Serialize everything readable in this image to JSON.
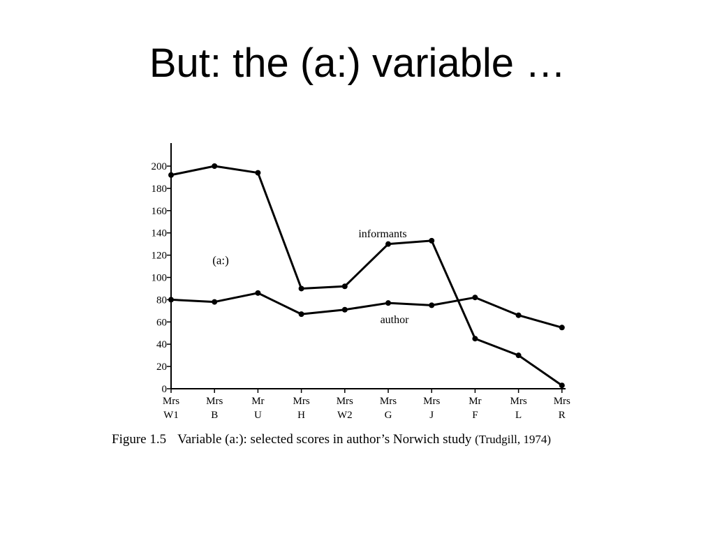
{
  "slide": {
    "title": "But: the (a:) variable …"
  },
  "chart_data": {
    "type": "line",
    "categories": [
      [
        "Mrs",
        "W1"
      ],
      [
        "Mrs",
        "B"
      ],
      [
        "Mr",
        "U"
      ],
      [
        "Mrs",
        "H"
      ],
      [
        "Mrs",
        "W2"
      ],
      [
        "Mrs",
        "G"
      ],
      [
        "Mrs",
        "J"
      ],
      [
        "Mr",
        "F"
      ],
      [
        "Mrs",
        "L"
      ],
      [
        "Mrs",
        "R"
      ]
    ],
    "series": [
      {
        "name": "informants",
        "values": [
          192,
          200,
          194,
          90,
          92,
          130,
          133,
          45,
          30,
          3
        ]
      },
      {
        "name": "author",
        "values": [
          80,
          78,
          86,
          67,
          71,
          77,
          75,
          82,
          66,
          55
        ]
      }
    ],
    "yticks": [
      0,
      20,
      40,
      60,
      80,
      100,
      120,
      140,
      160,
      180,
      200
    ],
    "ylim": [
      0,
      215
    ],
    "annotation": "(a:)",
    "grid": false,
    "legend": "none"
  },
  "caption": {
    "label": "Figure 1.5",
    "text": "Variable (a:): selected scores in author’s Norwich study",
    "citation": "(Trudgill, 1974)"
  }
}
